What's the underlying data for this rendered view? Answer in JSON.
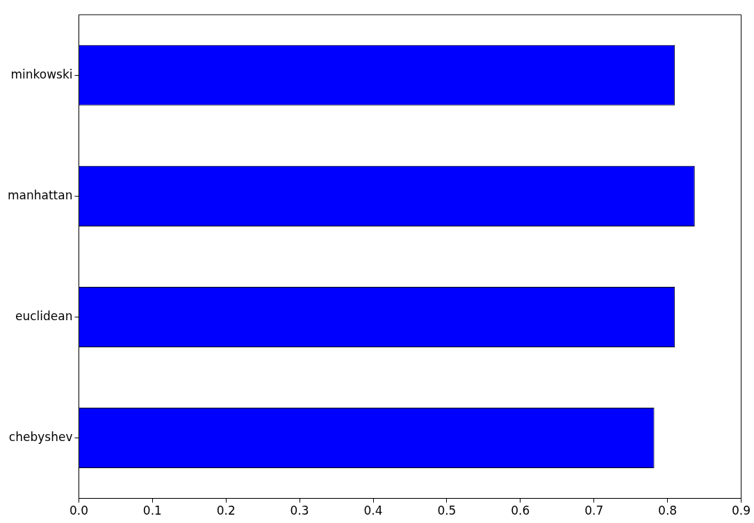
{
  "chart_data": {
    "type": "bar",
    "orientation": "horizontal",
    "categories": [
      "minkowski",
      "manhattan",
      "euclidean",
      "chebyshev"
    ],
    "values": [
      0.81,
      0.837,
      0.81,
      0.782
    ],
    "color": "#0000ff",
    "xlim": [
      0,
      0.9
    ],
    "xticks": [
      {
        "value": 0,
        "label": "0.0"
      },
      {
        "value": 0.1,
        "label": "0.1"
      },
      {
        "value": 0.2,
        "label": "0.2"
      },
      {
        "value": 0.3,
        "label": "0.3"
      },
      {
        "value": 0.4,
        "label": "0.4"
      },
      {
        "value": 0.5,
        "label": "0.5"
      },
      {
        "value": 0.6,
        "label": "0.6"
      },
      {
        "value": 0.7,
        "label": "0.7"
      },
      {
        "value": 0.8,
        "label": "0.8"
      },
      {
        "value": 0.9,
        "label": "0.9"
      }
    ],
    "grid": false,
    "legend": false
  }
}
